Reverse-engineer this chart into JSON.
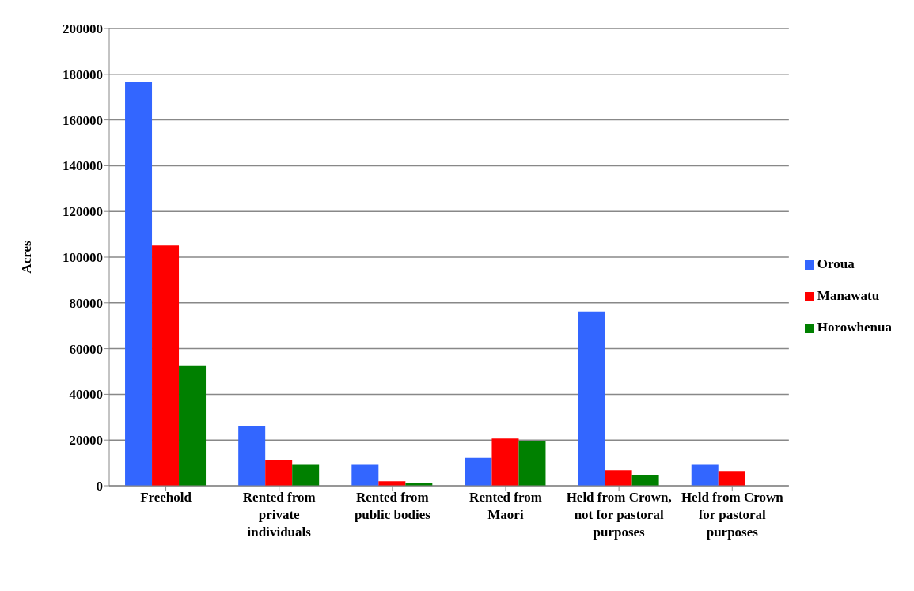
{
  "chart_data": {
    "type": "bar",
    "ylabel": "Acres",
    "categories": [
      "Freehold",
      "Rented from private individuals",
      "Rented from public bodies",
      "Rented from Maori",
      "Held from Crown, not for pastoral purposes",
      "Held from Crown for pastoral purposes"
    ],
    "series": [
      {
        "name": "Oroua",
        "color": "#3366ff",
        "values": [
          176500,
          26200,
          9200,
          12200,
          76200,
          9200
        ]
      },
      {
        "name": "Manawatu",
        "color": "#ff0000",
        "values": [
          105100,
          11200,
          2000,
          20700,
          6800,
          6500
        ]
      },
      {
        "name": "Horowhenua",
        "color": "#008000",
        "values": [
          52700,
          9200,
          1000,
          19400,
          4800,
          null
        ]
      }
    ],
    "ylim": [
      0,
      200000
    ],
    "yticks": [
      0,
      20000,
      40000,
      60000,
      80000,
      100000,
      120000,
      140000,
      160000,
      180000,
      200000
    ],
    "grid": "y",
    "legend": "right"
  }
}
